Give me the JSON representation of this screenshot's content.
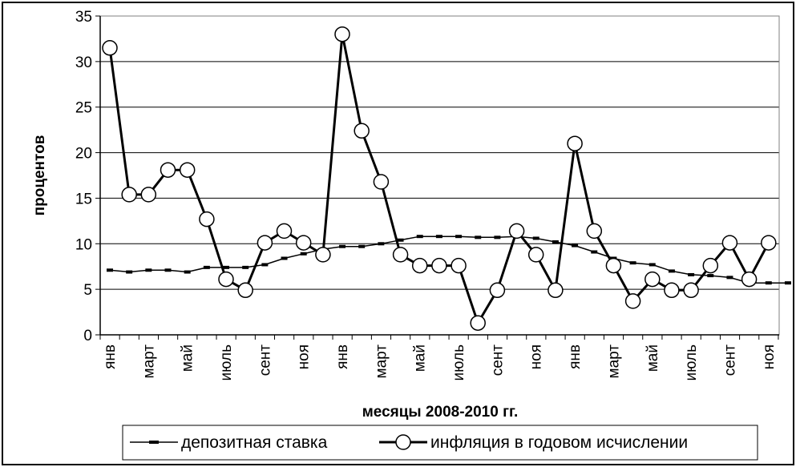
{
  "chart_data": {
    "type": "line",
    "xlabel": "месяцы 2008-2010 гг.",
    "ylabel": "процентов",
    "ylim": [
      0,
      35
    ],
    "yticks": [
      0,
      5,
      10,
      15,
      20,
      25,
      30,
      35
    ],
    "grid": "horizontal",
    "legend_position": "bottom",
    "tick_labels": [
      "янв",
      "март",
      "май",
      "июль",
      "сент",
      "ноя",
      "янв",
      "март",
      "май",
      "июль",
      "сент",
      "ноя",
      "янв",
      "март",
      "май",
      "июль",
      "сент",
      "ноя"
    ],
    "tick_label_positions": [
      0,
      2,
      4,
      6,
      8,
      10,
      12,
      14,
      16,
      18,
      20,
      22,
      24,
      26,
      28,
      30,
      32,
      34
    ],
    "series": [
      {
        "name": "депозитная ставка",
        "color": "#000000",
        "marker": "dash",
        "values": [
          7.1,
          6.9,
          7.1,
          7.1,
          6.9,
          7.4,
          7.4,
          7.4,
          7.7,
          8.4,
          8.9,
          9.4,
          9.7,
          9.7,
          10.0,
          10.4,
          10.8,
          10.8,
          10.8,
          10.7,
          10.7,
          10.8,
          10.6,
          10.2,
          9.8,
          9.1,
          8.4,
          7.9,
          7.7,
          7.0,
          6.6,
          6.5,
          6.3,
          5.7,
          5.7,
          5.7
        ]
      },
      {
        "name": "инфляция в годовом исчислении",
        "color": "#000000",
        "marker": "circle",
        "values": [
          31.5,
          15.4,
          15.4,
          18.1,
          18.1,
          12.7,
          6.1,
          4.9,
          10.1,
          11.4,
          10.1,
          8.8,
          33.0,
          22.4,
          16.8,
          8.8,
          7.6,
          7.6,
          7.6,
          1.3,
          4.9,
          11.4,
          8.8,
          4.9,
          21.0,
          11.4,
          7.6,
          3.7,
          6.1,
          4.9,
          4.9,
          7.6,
          10.1,
          6.1,
          10.1
        ]
      }
    ]
  }
}
